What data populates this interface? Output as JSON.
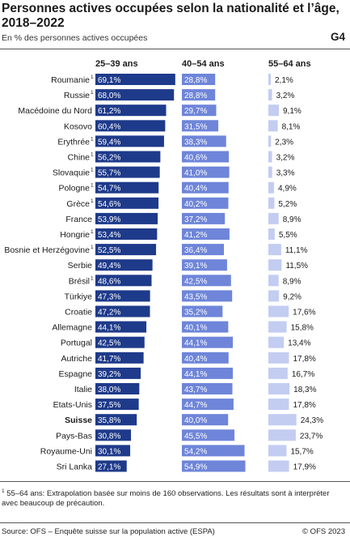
{
  "header": {
    "title": "Personnes actives occupées selon la nationalité et l’âge, 2018–2022",
    "subtitle": "En % des personnes actives occupées",
    "code": "G4"
  },
  "footer": {
    "footnote_mark": "1",
    "footnote": " 55–64 ans: Extrapolation basée sur moins de 160 observations. Les résultats sont à interpréter avec beaucoup de précaution.",
    "source": "Source: OFS – Enquête suisse sur la population active (ESPA)",
    "copyright": "© OFS 2023"
  },
  "chart_data": {
    "type": "bar",
    "orientation": "horizontal",
    "title": "Personnes actives occupées selon la nationalité et l’âge, 2018–2022",
    "unit": "%",
    "categories": [
      "Roumanie",
      "Russie",
      "Macédoine du Nord",
      "Kosovo",
      "Erythrée",
      "Chine",
      "Slovaquie",
      "Pologne",
      "Grèce",
      "France",
      "Hongrie",
      "Bosnie et Herzégovine",
      "Serbie",
      "Brésil",
      "Türkiye",
      "Croatie",
      "Allemagne",
      "Portugal",
      "Autriche",
      "Espagne",
      "Italie",
      "Etats-Unis",
      "Suisse",
      "Pays-Bas",
      "Royaume-Uni",
      "Sri Lanka"
    ],
    "footnote_flags": [
      true,
      true,
      false,
      false,
      true,
      true,
      true,
      true,
      true,
      false,
      true,
      true,
      false,
      true,
      false,
      false,
      false,
      false,
      false,
      false,
      false,
      false,
      false,
      false,
      false,
      false
    ],
    "highlight": "Suisse",
    "series": [
      {
        "name": "25–39 ans",
        "color": "#1e3a8a",
        "values": [
          69.1,
          68.0,
          61.2,
          60.4,
          59.4,
          56.2,
          55.7,
          54.7,
          54.6,
          53.9,
          53.4,
          52.5,
          49.4,
          48.6,
          47.3,
          47.2,
          44.1,
          42.5,
          41.7,
          39.2,
          38.0,
          37.5,
          35.8,
          30.8,
          30.1,
          27.1
        ]
      },
      {
        "name": "40–54 ans",
        "color": "#6e85d9",
        "values": [
          28.8,
          28.8,
          29.7,
          31.5,
          38.3,
          40.6,
          41.0,
          40.4,
          40.2,
          37.2,
          41.2,
          36.4,
          39.1,
          42.5,
          43.5,
          35.2,
          40.1,
          44.1,
          40.4,
          44.1,
          43.7,
          44.7,
          40.0,
          45.5,
          54.2,
          54.9
        ]
      },
      {
        "name": "55–64 ans",
        "color": "#c3cdf2",
        "values": [
          2.1,
          3.2,
          9.1,
          8.1,
          2.3,
          3.2,
          3.3,
          4.9,
          5.2,
          8.9,
          5.5,
          11.1,
          11.5,
          8.9,
          9.2,
          17.6,
          15.8,
          13.4,
          17.8,
          16.7,
          18.3,
          17.8,
          24.3,
          23.7,
          15.7,
          17.9
        ]
      }
    ],
    "value_labels": [
      [
        "69,1%",
        "68,0%",
        "61,2%",
        "60,4%",
        "59,4%",
        "56,2%",
        "55,7%",
        "54,7%",
        "54,6%",
        "53,9%",
        "53,4%",
        "52,5%",
        "49,4%",
        "48,6%",
        "47,3%",
        "47,2%",
        "44,1%",
        "42,5%",
        "41,7%",
        "39,2%",
        "38,0%",
        "37,5%",
        "35,8%",
        "30,8%",
        "30,1%",
        "27,1%"
      ],
      [
        "28,8%",
        "28,8%",
        "29,7%",
        "31,5%",
        "38,3%",
        "40,6%",
        "41,0%",
        "40,4%",
        "40,2%",
        "37,2%",
        "41,2%",
        "36,4%",
        "39,1%",
        "42,5%",
        "43,5%",
        "35,2%",
        "40,1%",
        "44,1%",
        "40,4%",
        "44,1%",
        "43,7%",
        "44,7%",
        "40,0%",
        "45,5%",
        "54,2%",
        "54,9%"
      ],
      [
        "2,1%",
        "3,2%",
        "9,1%",
        "8,1%",
        "2,3%",
        "3,2%",
        "3,3%",
        "4,9%",
        "5,2%",
        "8,9%",
        "5,5%",
        "11,1%",
        "11,5%",
        "8,9%",
        "9,2%",
        "17,6%",
        "15,8%",
        "13,4%",
        "17,8%",
        "16,7%",
        "18,3%",
        "17,8%",
        "24,3%",
        "23,7%",
        "15,7%",
        "17,9%"
      ]
    ],
    "grid": false,
    "legend": "column headers"
  }
}
